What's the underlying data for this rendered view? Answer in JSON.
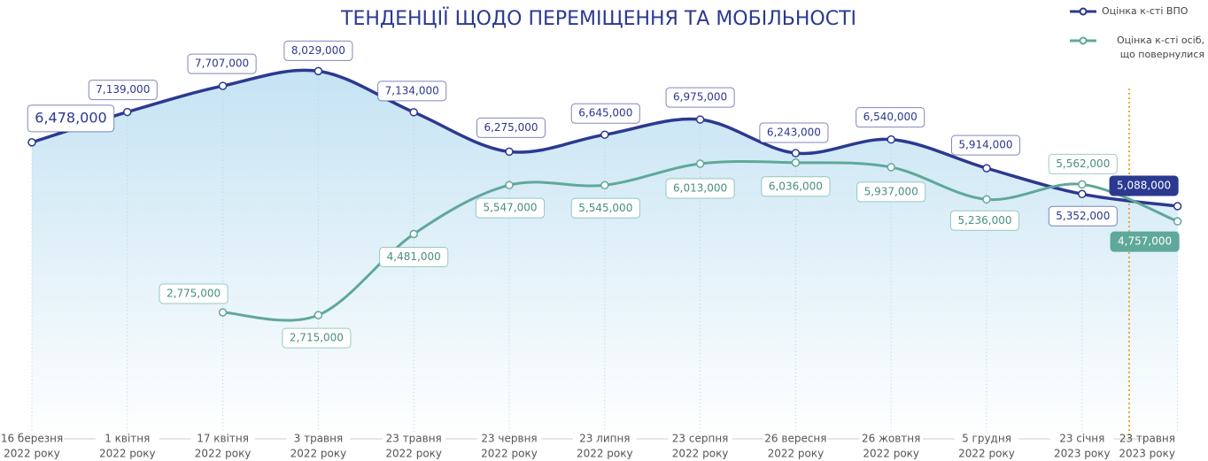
{
  "chart_data": {
    "type": "line",
    "title": "ТЕНДЕНЦІЇ ЩОДО ПЕРЕМІЩЕННЯ ТА МОБІЛЬНОСТІ",
    "categories": [
      [
        "16 березня",
        "2022 року"
      ],
      [
        "1 квітня",
        "2022 року"
      ],
      [
        "17 квітня",
        "2022 року"
      ],
      [
        "3 травня",
        "2022 року"
      ],
      [
        "23 травня",
        "2022 року"
      ],
      [
        "23 червня",
        "2022 року"
      ],
      [
        "23 липня",
        "2022 року"
      ],
      [
        "23 серпня",
        "2022 року"
      ],
      [
        "26 вересня",
        "2022 року"
      ],
      [
        "26 жовтня",
        "2022 року"
      ],
      [
        "5 грудня",
        "2022 року"
      ],
      [
        "23 січня",
        "2023 року"
      ],
      [
        "23 травня",
        "2023 року"
      ]
    ],
    "series": [
      {
        "name": "Оцінка к-сті ВПО",
        "color": "#2b3990",
        "values": [
          6478000,
          7139000,
          7707000,
          8029000,
          7134000,
          6275000,
          6645000,
          6975000,
          6243000,
          6540000,
          5914000,
          5352000,
          5088000
        ],
        "value_labels": [
          "6,478,000",
          "7,139,000",
          "7,707,000",
          "8,029,000",
          "7,134,000",
          "6,275,000",
          "6,645,000",
          "6,975,000",
          "6,243,000",
          "6,540,000",
          "5,914,000",
          "5,352,000",
          "5,088,000"
        ]
      },
      {
        "name": "Оцінка к-сті осіб, що повернулися",
        "color": "#5fa89a",
        "values": [
          null,
          null,
          2775000,
          2715000,
          4481000,
          5547000,
          5545000,
          6013000,
          6036000,
          5937000,
          5236000,
          5562000,
          4757000
        ],
        "value_labels": [
          null,
          null,
          "2,775,000",
          "2,715,000",
          "4,481,000",
          "5,547,000",
          "5,545,000",
          "6,013,000",
          "6,036,000",
          "5,937,000",
          "5,236,000",
          "5,562,000",
          "4,757,000"
        ]
      }
    ],
    "ylim": [
      0,
      9000000
    ]
  }
}
